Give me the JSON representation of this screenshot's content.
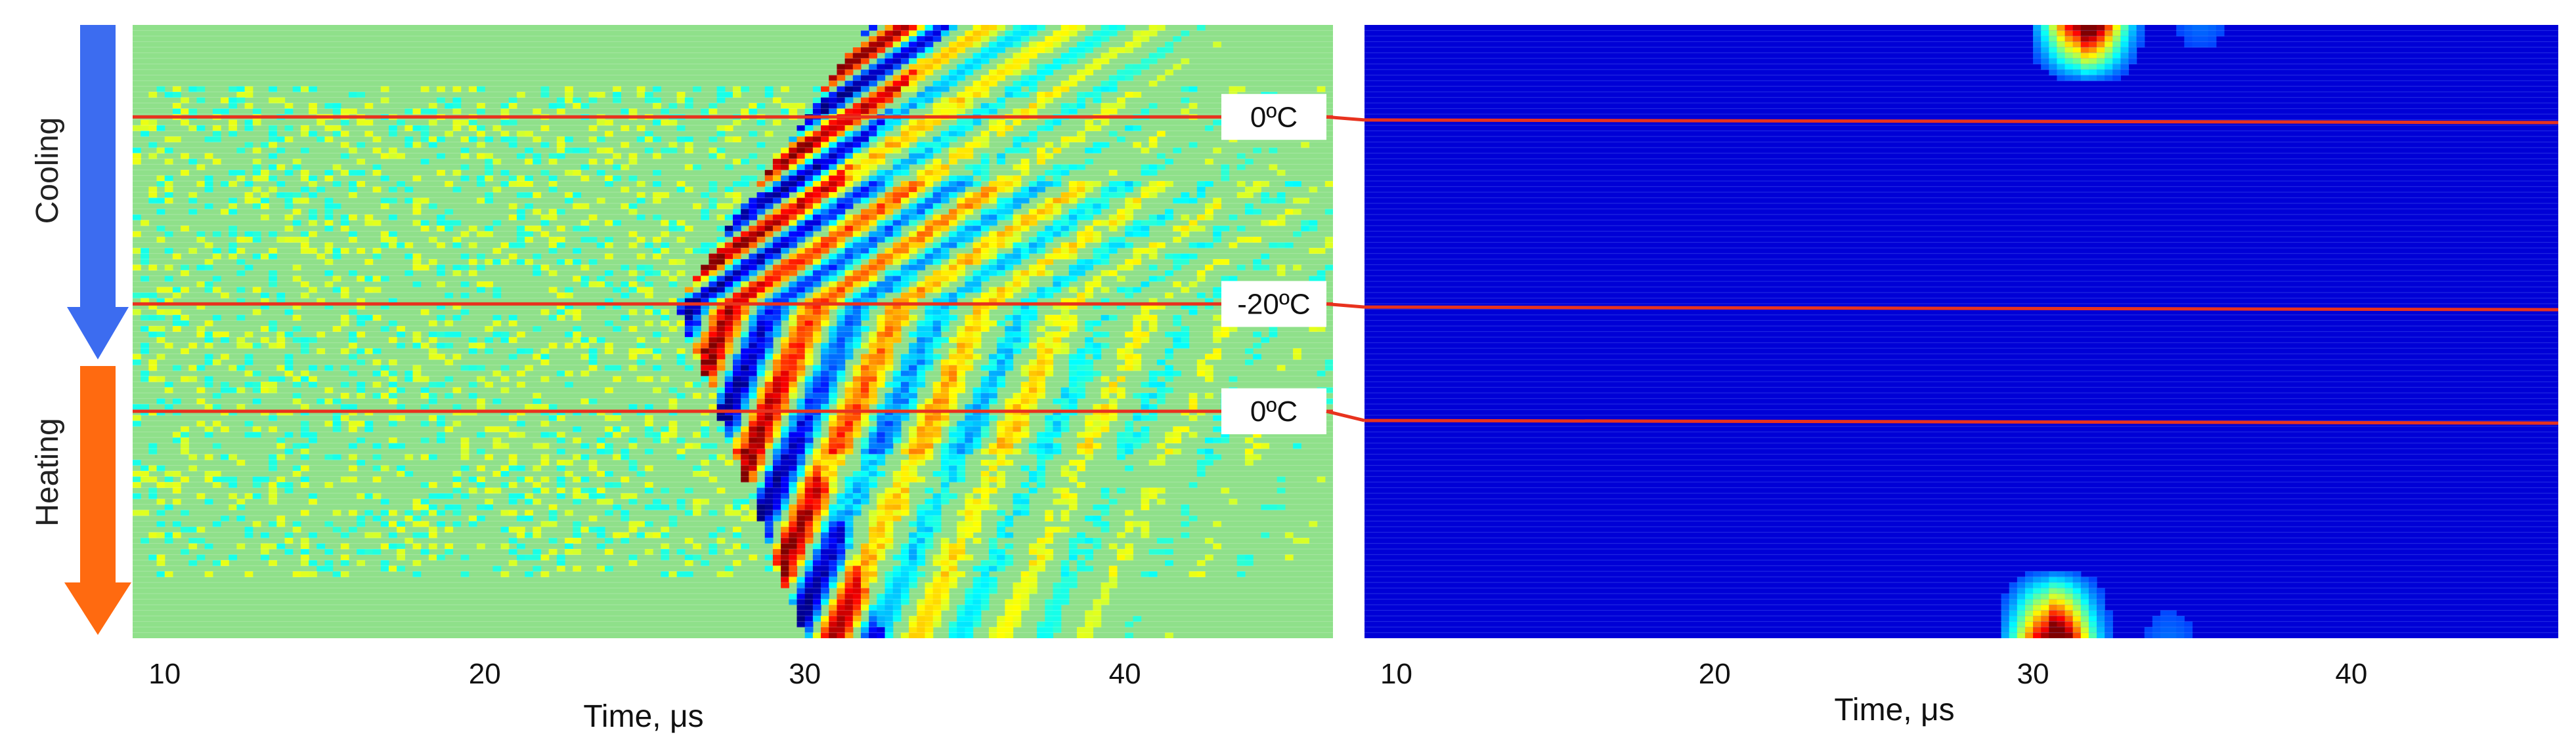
{
  "chart_data": [
    {
      "type": "heatmap",
      "panel": "left",
      "title": "",
      "xlabel": "Time, μs",
      "ylabel": "",
      "xlim": [
        9,
        46.5
      ],
      "x_ticks": [
        10,
        20,
        30,
        40
      ],
      "grid": false,
      "legend": "none",
      "colormap": "jet",
      "value_range": [
        -1,
        1
      ],
      "temperature_markers": [
        {
          "label": "0ºC",
          "row_fraction": 0.15
        },
        {
          "label": "-20ºC",
          "row_fraction": 0.455
        },
        {
          "label": "0ºC",
          "row_fraction": 0.63
        }
      ],
      "wavefront_arrival": {
        "cooling_start_us": 32.5,
        "coldest_us": 26.5,
        "heating_end_us": 30.5
      }
    },
    {
      "type": "heatmap",
      "panel": "right",
      "title": "",
      "xlabel": "Time, μs",
      "ylabel": "",
      "xlim": [
        9,
        46.5
      ],
      "x_ticks": [
        10,
        20,
        30,
        40
      ],
      "grid": false,
      "legend": "none",
      "colormap": "jet",
      "value_range": [
        0,
        1
      ],
      "temperature_markers": [
        {
          "label": "",
          "row_fraction": 0.155
        },
        {
          "label": "",
          "row_fraction": 0.46
        },
        {
          "label": "",
          "row_fraction": 0.645
        }
      ],
      "energy_peaks": [
        {
          "time_us": 31.5,
          "row_fraction_range": [
            0,
            0.1
          ]
        },
        {
          "time_us": 30.5,
          "row_fraction_range": [
            0.88,
            1.0
          ]
        }
      ]
    }
  ],
  "arrows": {
    "cooling": {
      "label": "Cooling",
      "color": "#3c6cf0"
    },
    "heating": {
      "label": "Heating",
      "color": "#ff6a10"
    }
  },
  "colors": {
    "marker_line": "#e8321e",
    "jet_low": "#00008f",
    "jet_mid": "#7fff7f",
    "jet_high": "#800000"
  }
}
